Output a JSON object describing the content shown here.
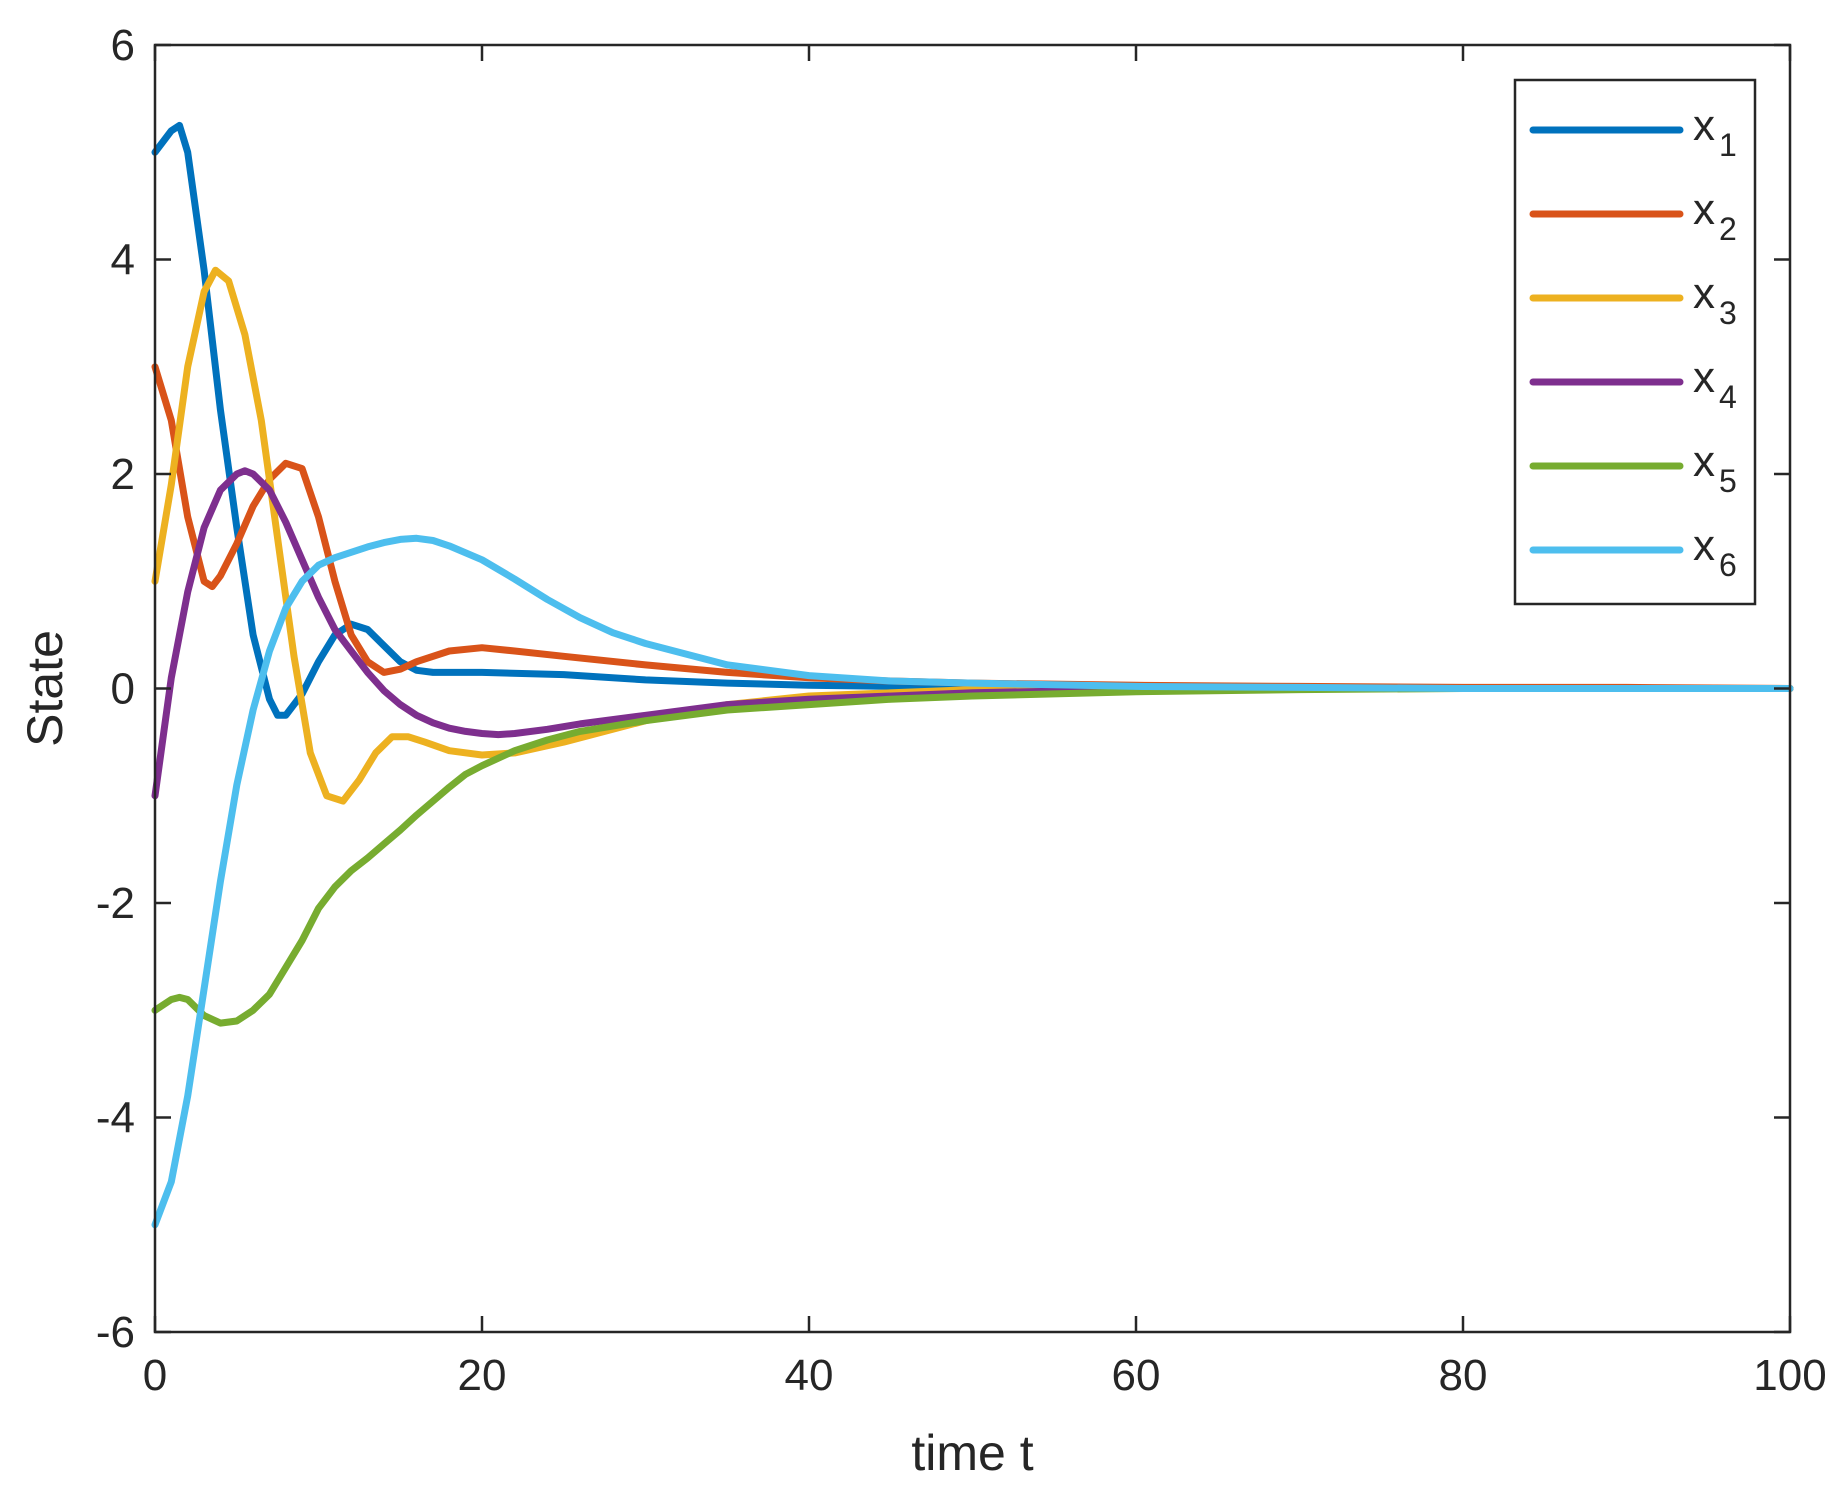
{
  "chart_data": {
    "type": "line",
    "title": "",
    "xlabel": "time t",
    "ylabel": "State",
    "xlim": [
      0,
      100
    ],
    "ylim": [
      -6,
      6
    ],
    "xticks": [
      0,
      20,
      40,
      60,
      80,
      100
    ],
    "yticks": [
      -6,
      -4,
      -2,
      0,
      2,
      4,
      6
    ],
    "grid": false,
    "legend_position": "top-right",
    "series": [
      {
        "name": "x1",
        "color": "#0072BD",
        "x": [
          0,
          1,
          1.5,
          2,
          3,
          4,
          5,
          6,
          7,
          7.5,
          8,
          9,
          10,
          11,
          12,
          13,
          14,
          15,
          16,
          17,
          18,
          20,
          25,
          30,
          35,
          40,
          50,
          60,
          70,
          80,
          90,
          100
        ],
        "y": [
          5.0,
          5.2,
          5.25,
          5.0,
          3.9,
          2.6,
          1.5,
          0.5,
          -0.1,
          -0.25,
          -0.25,
          -0.05,
          0.25,
          0.5,
          0.6,
          0.55,
          0.4,
          0.25,
          0.17,
          0.15,
          0.15,
          0.15,
          0.13,
          0.08,
          0.05,
          0.03,
          0.01,
          0.0,
          0.0,
          0.0,
          0.0,
          0.0
        ]
      },
      {
        "name": "x2",
        "color": "#D95319",
        "x": [
          0,
          1,
          2,
          3,
          3.5,
          4,
          5,
          6,
          7,
          8,
          9,
          10,
          11,
          12,
          13,
          14,
          15,
          16,
          18,
          20,
          22,
          25,
          30,
          35,
          40,
          45,
          50,
          60,
          70,
          80,
          90,
          100
        ],
        "y": [
          3.0,
          2.5,
          1.6,
          1.0,
          0.95,
          1.05,
          1.35,
          1.7,
          1.95,
          2.1,
          2.05,
          1.6,
          1.0,
          0.5,
          0.25,
          0.15,
          0.18,
          0.25,
          0.35,
          0.38,
          0.35,
          0.3,
          0.22,
          0.15,
          0.1,
          0.07,
          0.05,
          0.03,
          0.02,
          0.01,
          0.01,
          0.0
        ]
      },
      {
        "name": "x3",
        "color": "#EDB120",
        "x": [
          0,
          1,
          2,
          3,
          3.7,
          4.5,
          5.5,
          6.5,
          7.5,
          8.5,
          9.5,
          10.5,
          11.5,
          12.5,
          13.5,
          14.5,
          15.5,
          16.5,
          18,
          20,
          22,
          25,
          30,
          35,
          40,
          50,
          60,
          70,
          80,
          90,
          100
        ],
        "y": [
          1.0,
          1.9,
          3.0,
          3.7,
          3.9,
          3.8,
          3.3,
          2.5,
          1.4,
          0.3,
          -0.6,
          -1.0,
          -1.05,
          -0.85,
          -0.6,
          -0.45,
          -0.45,
          -0.5,
          -0.58,
          -0.62,
          -0.6,
          -0.5,
          -0.3,
          -0.15,
          -0.07,
          -0.01,
          0.0,
          0.0,
          0.0,
          0.0,
          0.0
        ]
      },
      {
        "name": "x4",
        "color": "#7E2F8E",
        "x": [
          0,
          1,
          2,
          3,
          4,
          5,
          5.5,
          6,
          7,
          8,
          9,
          10,
          11,
          12,
          13,
          14,
          15,
          16,
          17,
          18,
          19,
          20,
          21,
          22,
          24,
          26,
          30,
          35,
          40,
          50,
          60,
          70,
          80,
          90,
          100
        ],
        "y": [
          -1.0,
          0.1,
          0.9,
          1.5,
          1.85,
          2.0,
          2.03,
          2.0,
          1.85,
          1.55,
          1.2,
          0.85,
          0.55,
          0.35,
          0.15,
          -0.02,
          -0.15,
          -0.25,
          -0.32,
          -0.37,
          -0.4,
          -0.42,
          -0.43,
          -0.42,
          -0.38,
          -0.33,
          -0.25,
          -0.15,
          -0.1,
          -0.04,
          -0.01,
          0.0,
          0.0,
          0.0,
          0.0
        ]
      },
      {
        "name": "x5",
        "color": "#77AC30",
        "x": [
          0,
          1,
          1.5,
          2,
          3,
          4,
          5,
          6,
          7,
          8,
          9,
          10,
          11,
          12,
          13,
          14,
          15,
          16,
          17,
          18,
          19,
          20,
          21,
          22,
          24,
          26,
          30,
          35,
          40,
          45,
          50,
          60,
          70,
          80,
          90,
          100
        ],
        "y": [
          -3.0,
          -2.9,
          -2.88,
          -2.9,
          -3.05,
          -3.12,
          -3.1,
          -3.0,
          -2.85,
          -2.6,
          -2.35,
          -2.05,
          -1.85,
          -1.7,
          -1.58,
          -1.45,
          -1.32,
          -1.18,
          -1.05,
          -0.92,
          -0.8,
          -0.72,
          -0.65,
          -0.58,
          -0.48,
          -0.4,
          -0.3,
          -0.2,
          -0.15,
          -0.1,
          -0.07,
          -0.03,
          -0.01,
          0.0,
          0.0,
          0.0
        ]
      },
      {
        "name": "x6",
        "color": "#4DBEEE",
        "x": [
          0,
          1,
          2,
          3,
          4,
          5,
          6,
          7,
          8,
          9,
          10,
          11,
          12,
          13,
          14,
          15,
          16,
          17,
          18,
          20,
          22,
          24,
          26,
          28,
          30,
          35,
          40,
          45,
          50,
          60,
          70,
          80,
          90,
          100
        ],
        "y": [
          -5.0,
          -4.6,
          -3.8,
          -2.8,
          -1.8,
          -0.9,
          -0.2,
          0.35,
          0.75,
          1.0,
          1.15,
          1.22,
          1.27,
          1.32,
          1.36,
          1.39,
          1.4,
          1.38,
          1.33,
          1.2,
          1.02,
          0.83,
          0.66,
          0.52,
          0.42,
          0.22,
          0.12,
          0.07,
          0.05,
          0.02,
          0.01,
          0.0,
          0.0,
          0.0
        ]
      }
    ]
  }
}
